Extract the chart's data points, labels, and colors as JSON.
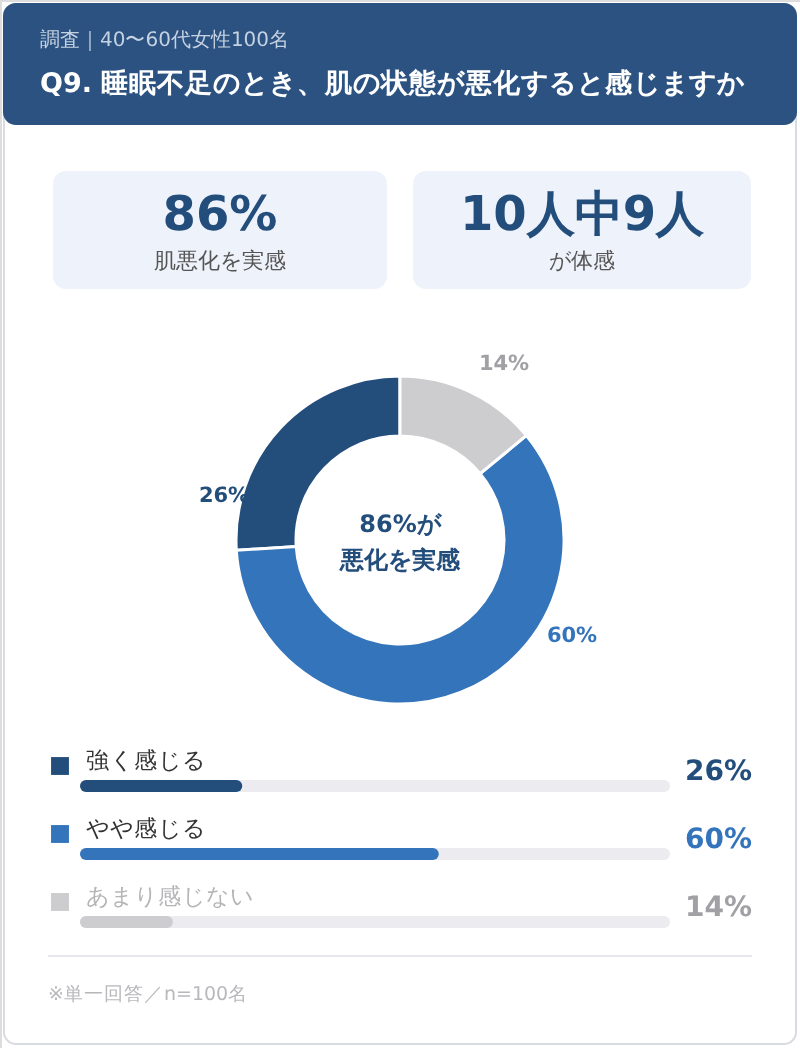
{
  "chart_data": {
    "type": "donut",
    "title": "Q9. 睡眠不足のとき、肌の状態が悪化すると感じますか",
    "subtitle": "調査｜40〜60代女性100名",
    "categories": [
      "強く感じる",
      "やや感じる",
      "あまり感じない"
    ],
    "values": [
      26,
      60,
      14
    ],
    "colors": [
      "#234e7c",
      "#3474bb",
      "#cdcdd0"
    ],
    "value_labels": [
      "26%",
      "60%",
      "14%"
    ],
    "legend": "bottom",
    "annotations": [
      "86%",
      "肌悪化を実感",
      "10人中9人",
      "が体感",
      "86%が",
      "悪化を実感",
      "※単一回答／n=100名"
    ]
  }
}
